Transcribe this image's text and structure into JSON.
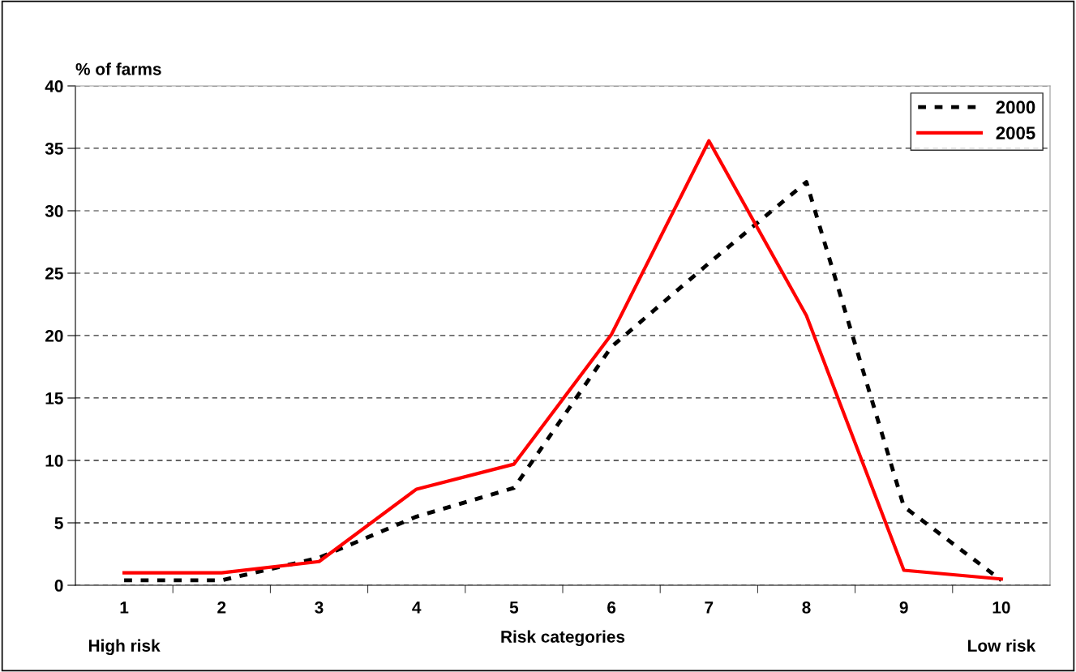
{
  "chart_data": {
    "type": "line",
    "ylabel": "% of farms",
    "xlabel": "Risk categories",
    "categories": [
      "1",
      "2",
      "3",
      "4",
      "5",
      "6",
      "7",
      "8",
      "9",
      "10"
    ],
    "series": [
      {
        "name": "2000",
        "color": "#000000",
        "line_style": "dotted",
        "values": [
          0.4,
          0.4,
          2.2,
          5.5,
          7.8,
          19.1,
          25.8,
          32.3,
          6.3,
          0.4
        ]
      },
      {
        "name": "2005",
        "color": "#ff0000",
        "line_style": "solid",
        "values": [
          1.0,
          1.0,
          1.9,
          7.7,
          9.7,
          20.1,
          35.6,
          21.6,
          1.2,
          0.5
        ]
      }
    ],
    "ylim": [
      0,
      40
    ],
    "yticks": [
      0,
      5,
      10,
      15,
      20,
      25,
      30,
      35,
      40
    ],
    "grid": "y",
    "legend": "top right",
    "marker": "none",
    "annotations": [
      "High risk",
      "Low risk"
    ]
  }
}
